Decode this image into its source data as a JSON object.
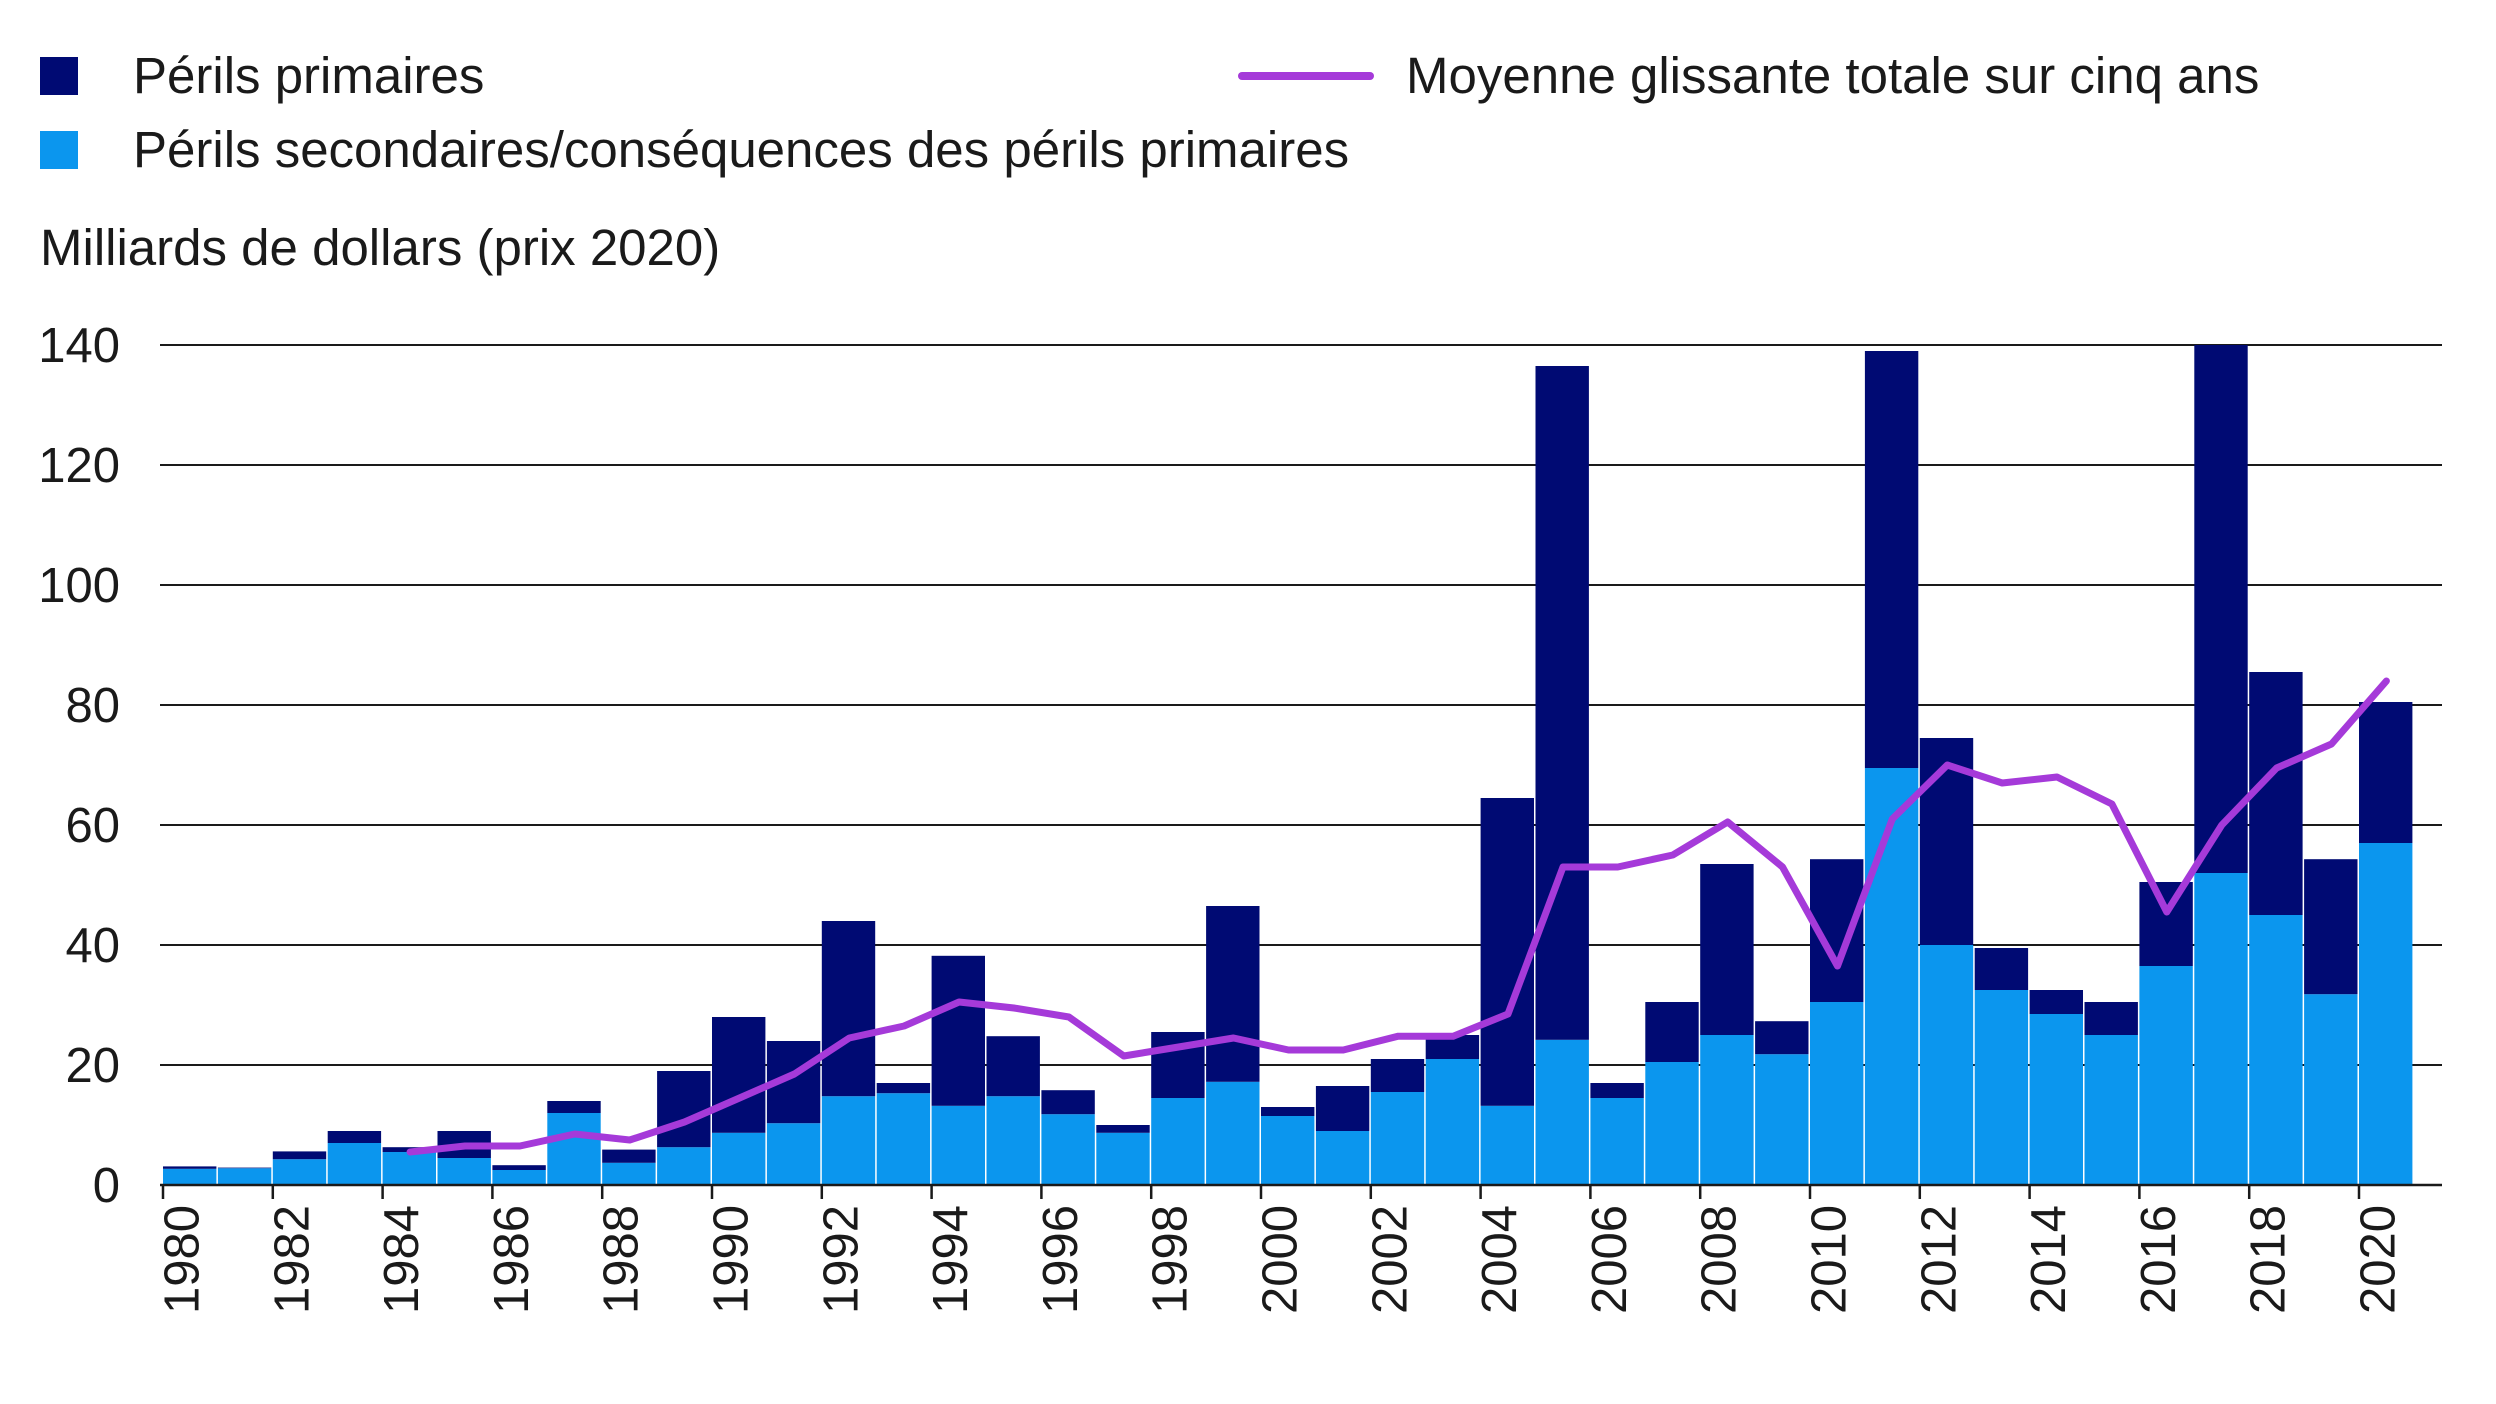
{
  "legend": {
    "primary": "Périls primaires",
    "secondary": "Périls secondaires/conséquences des périls primaires",
    "average": "Moyenne glissante totale sur cinq ans"
  },
  "colors": {
    "primary": "#000a73",
    "secondary": "#0b96ee",
    "average": "#a53ad9",
    "grid": "#1a1a1a"
  },
  "chart_data": {
    "type": "bar",
    "stacked": true,
    "ylabel": "Milliards de dollars (prix 2020)",
    "ylim": [
      0,
      140
    ],
    "yticks": [
      0,
      20,
      40,
      60,
      80,
      100,
      120,
      140
    ],
    "grid": true,
    "legend_position": "top",
    "categories": [
      1980,
      1981,
      1982,
      1983,
      1984,
      1985,
      1986,
      1987,
      1988,
      1989,
      1990,
      1991,
      1992,
      1993,
      1994,
      1995,
      1996,
      1997,
      1998,
      1999,
      2000,
      2001,
      2002,
      2003,
      2004,
      2005,
      2006,
      2007,
      2008,
      2009,
      2010,
      2011,
      2012,
      2013,
      2014,
      2015,
      2016,
      2017,
      2018,
      2019,
      2020
    ],
    "xtick_labels": [
      "1980",
      "1982",
      "1984",
      "1986",
      "1988",
      "1990",
      "1992",
      "1994",
      "1996",
      "1998",
      "2000",
      "2002",
      "2004",
      "2006",
      "2008",
      "2010",
      "2012",
      "2014",
      "2016",
      "2018",
      "2020"
    ],
    "series": [
      {
        "name": "Périls secondaires/conséquences des périls primaires",
        "values": [
          2.7,
          2.8,
          4.3,
          7.0,
          5.5,
          4.5,
          2.5,
          12.0,
          3.7,
          6.3,
          8.7,
          10.3,
          14.8,
          15.3,
          13.2,
          14.8,
          11.8,
          8.7,
          14.5,
          17.2,
          11.5,
          9.0,
          15.5,
          21.0,
          13.2,
          24.2,
          14.5,
          20.5,
          25.0,
          21.8,
          30.5,
          69.5,
          40.0,
          32.5,
          28.5,
          25.0,
          36.5,
          52.0,
          45.0,
          31.8,
          57.0
        ]
      },
      {
        "name": "Périls primaires",
        "values": [
          0.4,
          0.1,
          1.3,
          2.0,
          0.8,
          4.5,
          0.8,
          2.0,
          2.2,
          12.7,
          19.3,
          13.7,
          29.2,
          1.7,
          25.0,
          10.0,
          4.0,
          1.3,
          11.0,
          29.3,
          1.5,
          7.5,
          5.5,
          4.0,
          51.3,
          112.3,
          2.5,
          10.0,
          28.5,
          5.5,
          23.8,
          69.5,
          34.5,
          7.0,
          4.0,
          5.5,
          14.0,
          88.0,
          40.5,
          22.5,
          23.5
        ]
      },
      {
        "name": "Moyenne glissante totale sur cinq ans",
        "type": "line",
        "x": [
          1984,
          1985,
          1986,
          1987,
          1988,
          1989,
          1990,
          1991,
          1992,
          1993,
          1994,
          1995,
          1996,
          1997,
          1998,
          1999,
          2000,
          2001,
          2002,
          2003,
          2004,
          2005,
          2006,
          2007,
          2008,
          2009,
          2010,
          2011,
          2012,
          2013,
          2014,
          2015,
          2016,
          2017,
          2018,
          2019,
          2020
        ],
        "values": [
          5.5,
          6.5,
          6.5,
          8.5,
          7.5,
          10.5,
          14.5,
          18.5,
          24.5,
          26.5,
          30.5,
          29.5,
          28.0,
          21.5,
          23.0,
          24.5,
          22.5,
          22.5,
          24.8,
          24.8,
          28.5,
          53.0,
          53.0,
          55.0,
          60.5,
          53.0,
          36.5,
          61.0,
          70.0,
          67.0,
          68.0,
          63.5,
          45.5,
          60.0,
          69.5,
          73.5,
          84.0
        ]
      }
    ]
  }
}
